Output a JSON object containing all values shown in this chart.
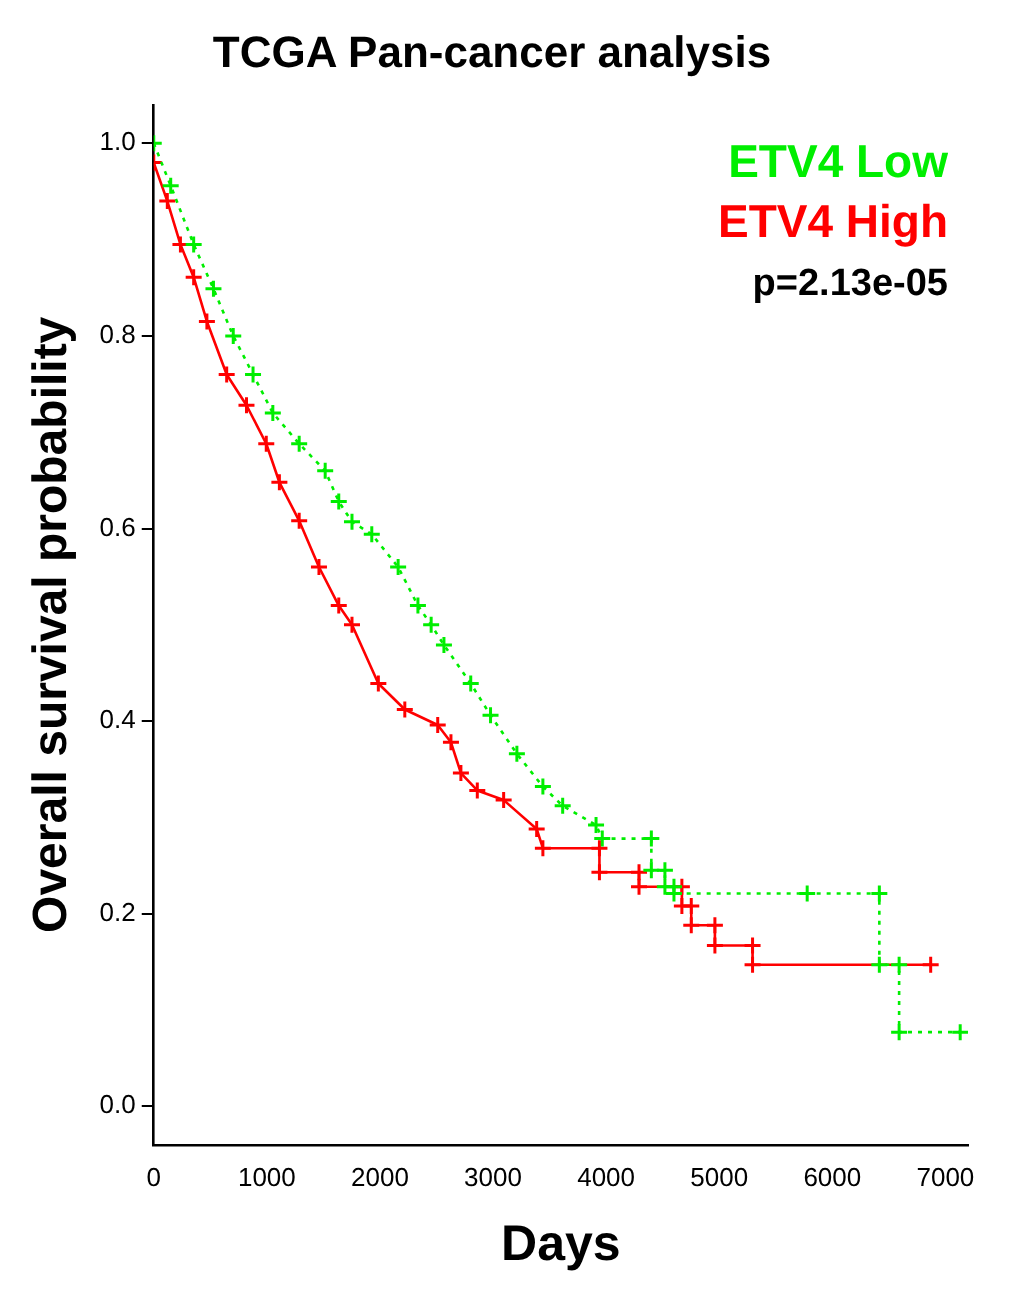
{
  "chart_data": {
    "type": "line",
    "title": "TCGA Pan-cancer analysis",
    "xlabel": "Days",
    "ylabel": "Overall survival probability",
    "xlim": [
      0,
      7200
    ],
    "xticks": [
      0,
      1000,
      2000,
      3000,
      4000,
      5000,
      6000,
      7000
    ],
    "ylim": [
      -0.04,
      1.04
    ],
    "yticks": [
      {
        "value": 0,
        "label": "0.0"
      },
      0.2,
      0.4,
      0.6,
      0.8,
      {
        "value": 1,
        "label": "1.0"
      }
    ],
    "grid": false,
    "legend": "top right",
    "marker": "cross",
    "annotations": [
      "p=2.13e-05"
    ],
    "series": [
      {
        "name": "ETV4 Low",
        "color": "#00ee00",
        "line_style": "dotted",
        "x": [
          0,
          150,
          353,
          528,
          703,
          878,
          1053,
          1286,
          1516,
          1636,
          1753,
          1928,
          2161,
          2336,
          2453,
          2566,
          2803,
          2978,
          3211,
          3441,
          3616,
          3911,
          3966,
          4400,
          4400,
          4520,
          4520,
          4600,
          4600,
          5778,
          6416,
          6416,
          6591,
          6591,
          7131
        ],
        "values": [
          1.0,
          0.956,
          0.895,
          0.849,
          0.8,
          0.76,
          0.72,
          0.688,
          0.66,
          0.628,
          0.607,
          0.594,
          0.56,
          0.52,
          0.5,
          0.479,
          0.439,
          0.406,
          0.366,
          0.332,
          0.312,
          0.292,
          0.278,
          0.278,
          0.245,
          0.245,
          0.228,
          0.228,
          0.221,
          0.221,
          0.221,
          0.147,
          0.147,
          0.077,
          0.077
        ]
      },
      {
        "name": "ETV4 High",
        "color": "#ff0000",
        "line_style": "solid",
        "x": [
          0,
          120,
          236,
          353,
          470,
          645,
          820,
          995,
          1111,
          1286,
          1461,
          1636,
          1753,
          1986,
          2220,
          2511,
          2628,
          2716,
          2861,
          3094,
          3386,
          3441,
          3941,
          3941,
          4291,
          4291,
          4670,
          4670,
          4753,
          4753,
          4962,
          4962,
          5295,
          5295,
          6870
        ],
        "values": [
          0.98,
          0.94,
          0.895,
          0.861,
          0.815,
          0.76,
          0.728,
          0.688,
          0.648,
          0.608,
          0.56,
          0.52,
          0.5,
          0.439,
          0.412,
          0.396,
          0.378,
          0.346,
          0.328,
          0.318,
          0.288,
          0.268,
          0.268,
          0.243,
          0.243,
          0.228,
          0.228,
          0.208,
          0.208,
          0.188,
          0.188,
          0.167,
          0.167,
          0.147,
          0.147
        ]
      }
    ]
  }
}
